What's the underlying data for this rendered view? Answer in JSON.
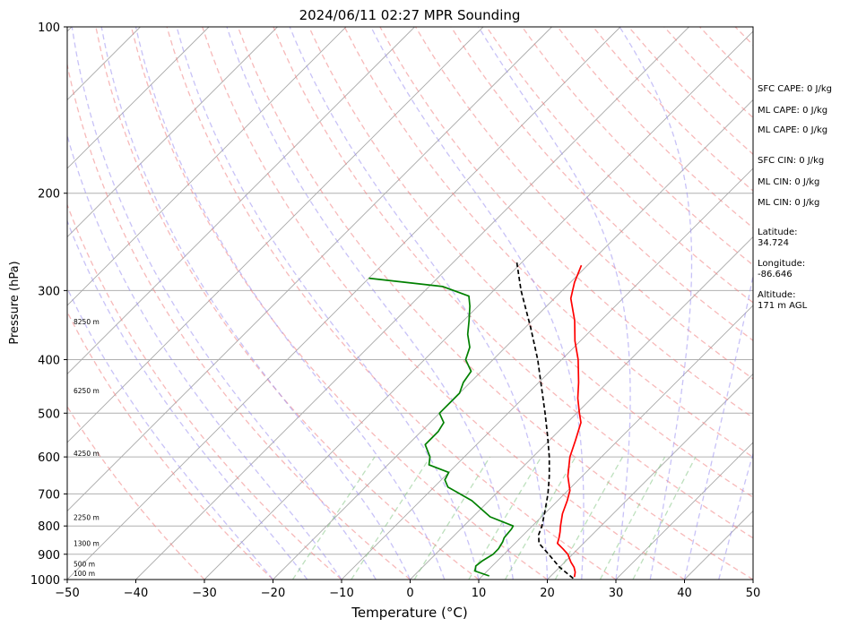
{
  "chart_data": {
    "type": "line",
    "title": "2024/06/11 02:27 MPR Sounding",
    "xlabel": "Temperature (°C)",
    "ylabel": "Pressure (hPa)",
    "xlim": [
      -50,
      50
    ],
    "ylim": [
      1000,
      100
    ],
    "y_scale": "log",
    "skew": true,
    "grid": true,
    "x_ticks": [
      "−50",
      "−40",
      "−30",
      "−20",
      "−10",
      "0",
      "10",
      "20",
      "30",
      "40",
      "50"
    ],
    "y_ticks": [
      {
        "p": 100,
        "label": "100"
      },
      {
        "p": 200,
        "label": "200"
      },
      {
        "p": 300,
        "label": "300"
      },
      {
        "p": 400,
        "label": "400"
      },
      {
        "p": 500,
        "label": "500"
      },
      {
        "p": 600,
        "label": "600"
      },
      {
        "p": 700,
        "label": "700"
      },
      {
        "p": 800,
        "label": "800"
      },
      {
        "p": 900,
        "label": "900"
      },
      {
        "p": 1000,
        "label": "1000"
      }
    ],
    "height_labels": [
      {
        "p": 985,
        "text": "100 m"
      },
      {
        "p": 948,
        "text": "500 m"
      },
      {
        "p": 870,
        "text": "1300 m"
      },
      {
        "p": 780,
        "text": "2250 m"
      },
      {
        "p": 597,
        "text": "4250 m"
      },
      {
        "p": 460,
        "text": "6250 m"
      },
      {
        "p": 345,
        "text": "8250 m"
      }
    ],
    "series": [
      {
        "color": "#ff0000",
        "points": [
          {
            "p": 990,
            "t": 23.6
          },
          {
            "p": 970,
            "t": 23.0
          },
          {
            "p": 950,
            "t": 22.1
          },
          {
            "p": 930,
            "t": 20.9
          },
          {
            "p": 900,
            "t": 19.3
          },
          {
            "p": 880,
            "t": 17.8
          },
          {
            "p": 860,
            "t": 16.2
          },
          {
            "p": 840,
            "t": 15.6
          },
          {
            "p": 820,
            "t": 14.9
          },
          {
            "p": 800,
            "t": 14.1
          },
          {
            "p": 760,
            "t": 12.6
          },
          {
            "p": 720,
            "t": 11.4
          },
          {
            "p": 690,
            "t": 10.3
          },
          {
            "p": 650,
            "t": 7.9
          },
          {
            "p": 600,
            "t": 5.4
          },
          {
            "p": 560,
            "t": 3.8
          },
          {
            "p": 520,
            "t": 2.0
          },
          {
            "p": 500,
            "t": 0.4
          },
          {
            "p": 470,
            "t": -2.0
          },
          {
            "p": 440,
            "t": -4.2
          },
          {
            "p": 400,
            "t": -7.6
          },
          {
            "p": 370,
            "t": -10.8
          },
          {
            "p": 340,
            "t": -13.8
          },
          {
            "p": 310,
            "t": -17.6
          },
          {
            "p": 290,
            "t": -19.4
          },
          {
            "p": 270,
            "t": -20.9
          }
        ]
      },
      {
        "color": "#008000",
        "points": [
          {
            "p": 985,
            "t": 11.0
          },
          {
            "p": 965,
            "t": 8.2
          },
          {
            "p": 945,
            "t": 7.6
          },
          {
            "p": 925,
            "t": 7.8
          },
          {
            "p": 900,
            "t": 8.4
          },
          {
            "p": 880,
            "t": 8.4
          },
          {
            "p": 855,
            "t": 8.0
          },
          {
            "p": 840,
            "t": 7.6
          },
          {
            "p": 810,
            "t": 7.4
          },
          {
            "p": 800,
            "t": 7.2
          },
          {
            "p": 770,
            "t": 2.5
          },
          {
            "p": 720,
            "t": -2.5
          },
          {
            "p": 680,
            "t": -8.0
          },
          {
            "p": 660,
            "t": -9.5
          },
          {
            "p": 640,
            "t": -10.0
          },
          {
            "p": 620,
            "t": -14.0
          },
          {
            "p": 600,
            "t": -15.0
          },
          {
            "p": 570,
            "t": -17.5
          },
          {
            "p": 540,
            "t": -17.5
          },
          {
            "p": 520,
            "t": -18.0
          },
          {
            "p": 500,
            "t": -20.0
          },
          {
            "p": 460,
            "t": -20.0
          },
          {
            "p": 440,
            "t": -21.0
          },
          {
            "p": 420,
            "t": -21.5
          },
          {
            "p": 400,
            "t": -24.0
          },
          {
            "p": 380,
            "t": -25.2
          },
          {
            "p": 360,
            "t": -27.4
          },
          {
            "p": 340,
            "t": -29.2
          },
          {
            "p": 320,
            "t": -31.2
          },
          {
            "p": 307,
            "t": -32.8
          },
          {
            "p": 295,
            "t": -38.0
          },
          {
            "p": 285,
            "t": -50.0
          }
        ]
      },
      {
        "color": "#000000",
        "dashed": true,
        "points": [
          {
            "p": 995,
            "t": 23.6
          },
          {
            "p": 950,
            "t": 20.0
          },
          {
            "p": 900,
            "t": 16.5
          },
          {
            "p": 860,
            "t": 13.5
          },
          {
            "p": 830,
            "t": 12.2
          },
          {
            "p": 800,
            "t": 11.4
          },
          {
            "p": 750,
            "t": 9.6
          },
          {
            "p": 700,
            "t": 7.6
          },
          {
            "p": 650,
            "t": 5.2
          },
          {
            "p": 600,
            "t": 2.4
          },
          {
            "p": 550,
            "t": -0.9
          },
          {
            "p": 500,
            "t": -4.6
          },
          {
            "p": 450,
            "t": -8.8
          },
          {
            "p": 400,
            "t": -13.5
          },
          {
            "p": 350,
            "t": -19.2
          },
          {
            "p": 300,
            "t": -26.0
          },
          {
            "p": 265,
            "t": -31.0
          }
        ]
      }
    ]
  },
  "side_panel": [
    "SFC CAPE: 0 J/kg",
    "ML CAPE: 0 J/kg",
    "ML CAPE: 0 J/kg",
    "SFC CIN: 0 J/kg",
    "ML CIN: 0 J/kg",
    "ML CIN: 0 J/kg",
    "Latitude:",
    "34.724",
    "Longitude:",
    "-86.646",
    "Altitude:",
    "171 m AGL"
  ]
}
